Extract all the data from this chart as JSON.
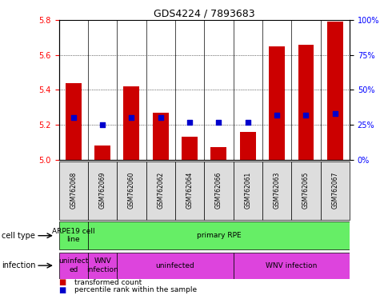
{
  "title": "GDS4224 / 7893683",
  "samples": [
    "GSM762068",
    "GSM762069",
    "GSM762060",
    "GSM762062",
    "GSM762064",
    "GSM762066",
    "GSM762061",
    "GSM762063",
    "GSM762065",
    "GSM762067"
  ],
  "transformed_counts": [
    5.44,
    5.08,
    5.42,
    5.27,
    5.13,
    5.07,
    5.16,
    5.65,
    5.66,
    5.79
  ],
  "percentile_ranks": [
    30,
    25,
    30,
    30,
    27,
    27,
    27,
    32,
    32,
    33
  ],
  "ylim_left": [
    5.0,
    5.8
  ],
  "ylim_right": [
    0,
    100
  ],
  "yticks_left": [
    5.0,
    5.2,
    5.4,
    5.6,
    5.8
  ],
  "yticks_right": [
    0,
    25,
    50,
    75,
    100
  ],
  "ytick_labels_right": [
    "0%",
    "25%",
    "50%",
    "75%",
    "100%"
  ],
  "bar_color": "#cc0000",
  "dot_color": "#0000cc",
  "cell_type_groups": [
    {
      "text": "ARPE19 cell\nline",
      "span": [
        0,
        1
      ],
      "color": "#66ee66"
    },
    {
      "text": "primary RPE",
      "span": [
        1,
        10
      ],
      "color": "#66ee66"
    }
  ],
  "infection_groups": [
    {
      "text": "uninfect\ned",
      "span": [
        0,
        1
      ],
      "color": "#dd44dd"
    },
    {
      "text": "WNV\ninfection",
      "span": [
        1,
        2
      ],
      "color": "#dd44dd"
    },
    {
      "text": "uninfected",
      "span": [
        2,
        6
      ],
      "color": "#dd44dd"
    },
    {
      "text": "WNV infection",
      "span": [
        6,
        10
      ],
      "color": "#dd44dd"
    }
  ],
  "legend_items": [
    {
      "color": "#cc0000",
      "label": "transformed count"
    },
    {
      "color": "#0000cc",
      "label": "percentile rank within the sample"
    }
  ],
  "cell_type_label": "cell type",
  "infection_label": "infection"
}
